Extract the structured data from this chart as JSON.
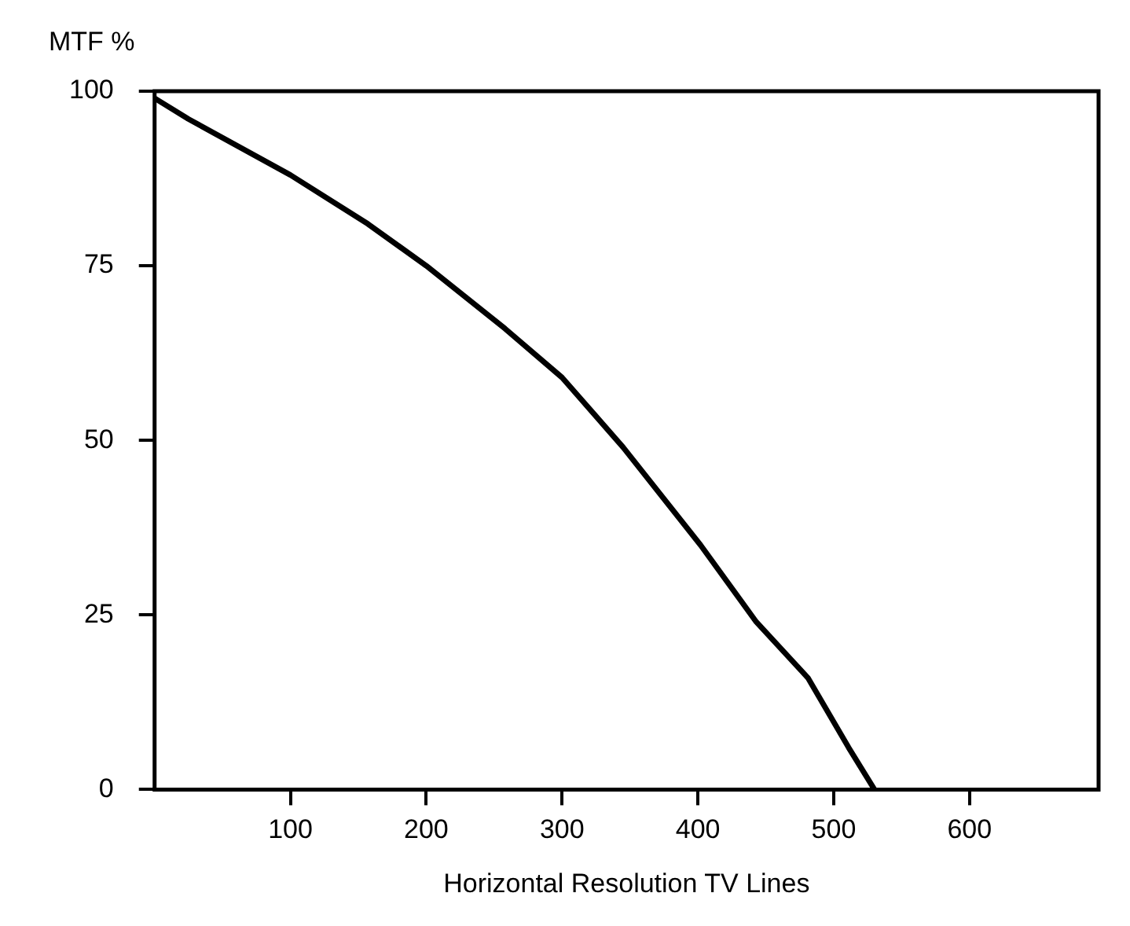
{
  "chart_data": {
    "type": "line",
    "xlabel": "Horizontal Resolution TV Lines",
    "ylabel": "MTF %",
    "series": [
      {
        "color": "#000000",
        "x": [
          0,
          25,
          100,
          157,
          200,
          258,
          300,
          345,
          402,
          443,
          481,
          511,
          530
        ],
        "values": [
          99,
          96,
          88,
          81,
          75,
          66,
          59,
          49,
          35,
          24,
          16,
          6,
          0
        ]
      }
    ],
    "xlim": [
      0,
      695
    ],
    "xticks": [
      100,
      200,
      300,
      400,
      500,
      600
    ],
    "ylim": [
      0,
      100
    ],
    "yticks": [
      0,
      25,
      50,
      75,
      100
    ],
    "grid": false,
    "legend": false,
    "marker": "none",
    "line_style": "solid"
  }
}
